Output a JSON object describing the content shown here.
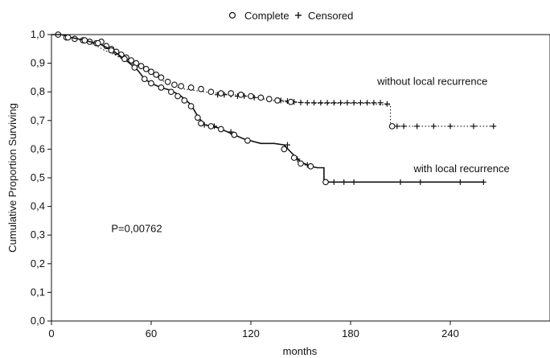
{
  "chart_data": {
    "type": "line",
    "title": "",
    "xlabel": "months",
    "ylabel": "Cumulative Proportion Surviving",
    "xlim": [
      0,
      300
    ],
    "ylim": [
      0,
      1.0
    ],
    "x_ticks": [
      0,
      60,
      120,
      180,
      240
    ],
    "x_tick_labels": [
      "0",
      "60",
      "120",
      "180",
      "240"
    ],
    "y_ticks": [
      0,
      0.1,
      0.2,
      0.3,
      0.4,
      0.5,
      0.6,
      0.7,
      0.8,
      0.9,
      1.0
    ],
    "y_tick_labels": [
      "0,0",
      "0,1",
      "0,2",
      "0,3",
      "0,4",
      "0,5",
      "0,6",
      "0,7",
      "0,8",
      "0,9",
      "1,0"
    ],
    "grid": false,
    "legend": {
      "position": "top-center",
      "entries": [
        {
          "label": "Complete",
          "marker": "circle"
        },
        {
          "label": "Censored",
          "marker": "plus"
        }
      ]
    },
    "annotations": [
      {
        "text": "P=0,00762",
        "x": 36,
        "y": 0.31
      },
      {
        "text": "without local recurrence",
        "x": 196,
        "y": 0.825
      },
      {
        "text": "with local recurrence",
        "x": 218,
        "y": 0.52
      }
    ],
    "series": [
      {
        "name": "without local recurrence",
        "line_style": "dotted",
        "points": [
          [
            0,
            1.0
          ],
          [
            6,
            1.0
          ],
          [
            10,
            0.99
          ],
          [
            15,
            0.985
          ],
          [
            20,
            0.975
          ],
          [
            26,
            0.965
          ],
          [
            32,
            0.945
          ],
          [
            38,
            0.93
          ],
          [
            44,
            0.91
          ],
          [
            50,
            0.895
          ],
          [
            56,
            0.875
          ],
          [
            62,
            0.86
          ],
          [
            68,
            0.835
          ],
          [
            74,
            0.82
          ],
          [
            80,
            0.81
          ],
          [
            86,
            0.805
          ],
          [
            92,
            0.8
          ],
          [
            100,
            0.795
          ],
          [
            110,
            0.79
          ],
          [
            120,
            0.785
          ],
          [
            128,
            0.775
          ],
          [
            134,
            0.77
          ],
          [
            140,
            0.765
          ],
          [
            150,
            0.762
          ],
          [
            160,
            0.76
          ],
          [
            170,
            0.76
          ],
          [
            180,
            0.76
          ],
          [
            190,
            0.76
          ],
          [
            200,
            0.755
          ],
          [
            204,
            0.755
          ],
          [
            204,
            0.68
          ],
          [
            230,
            0.68
          ],
          [
            260,
            0.68
          ],
          [
            266,
            0.68
          ]
        ],
        "complete_events": [
          [
            4,
            1.0
          ],
          [
            9,
            0.99
          ],
          [
            14,
            0.985
          ],
          [
            19,
            0.98
          ],
          [
            23,
            0.975
          ],
          [
            27,
            0.97
          ],
          [
            30,
            0.975
          ],
          [
            33,
            0.96
          ],
          [
            36,
            0.95
          ],
          [
            39,
            0.94
          ],
          [
            42,
            0.93
          ],
          [
            45,
            0.92
          ],
          [
            48,
            0.91
          ],
          [
            51,
            0.9
          ],
          [
            54,
            0.89
          ],
          [
            57,
            0.88
          ],
          [
            60,
            0.87
          ],
          [
            63,
            0.86
          ],
          [
            66,
            0.85
          ],
          [
            70,
            0.835
          ],
          [
            74,
            0.825
          ],
          [
            78,
            0.82
          ],
          [
            84,
            0.815
          ],
          [
            90,
            0.81
          ],
          [
            96,
            0.8
          ],
          [
            102,
            0.795
          ],
          [
            108,
            0.795
          ],
          [
            114,
            0.79
          ],
          [
            120,
            0.785
          ],
          [
            126,
            0.78
          ],
          [
            131,
            0.775
          ],
          [
            136,
            0.77
          ],
          [
            144,
            0.765
          ],
          [
            205,
            0.68
          ]
        ],
        "censored": [
          [
            100,
            0.79
          ],
          [
            104,
            0.79
          ],
          [
            108,
            0.79
          ],
          [
            112,
            0.785
          ],
          [
            116,
            0.785
          ],
          [
            122,
            0.78
          ],
          [
            138,
            0.77
          ],
          [
            142,
            0.768
          ],
          [
            146,
            0.765
          ],
          [
            150,
            0.763
          ],
          [
            154,
            0.762
          ],
          [
            158,
            0.762
          ],
          [
            162,
            0.762
          ],
          [
            166,
            0.762
          ],
          [
            170,
            0.762
          ],
          [
            174,
            0.762
          ],
          [
            178,
            0.762
          ],
          [
            182,
            0.762
          ],
          [
            186,
            0.762
          ],
          [
            190,
            0.762
          ],
          [
            194,
            0.762
          ],
          [
            198,
            0.762
          ],
          [
            202,
            0.758
          ],
          [
            208,
            0.68
          ],
          [
            212,
            0.68
          ],
          [
            220,
            0.68
          ],
          [
            230,
            0.68
          ],
          [
            240,
            0.68
          ],
          [
            254,
            0.68
          ],
          [
            266,
            0.68
          ]
        ]
      },
      {
        "name": "with local recurrence",
        "line_style": "solid",
        "points": [
          [
            0,
            1.0
          ],
          [
            6,
            1.0
          ],
          [
            12,
            0.99
          ],
          [
            20,
            0.98
          ],
          [
            30,
            0.965
          ],
          [
            38,
            0.94
          ],
          [
            46,
            0.905
          ],
          [
            52,
            0.875
          ],
          [
            56,
            0.845
          ],
          [
            60,
            0.83
          ],
          [
            66,
            0.815
          ],
          [
            72,
            0.805
          ],
          [
            78,
            0.785
          ],
          [
            84,
            0.755
          ],
          [
            88,
            0.715
          ],
          [
            92,
            0.685
          ],
          [
            100,
            0.675
          ],
          [
            108,
            0.655
          ],
          [
            116,
            0.635
          ],
          [
            126,
            0.62
          ],
          [
            134,
            0.62
          ],
          [
            140,
            0.615
          ],
          [
            144,
            0.59
          ],
          [
            150,
            0.555
          ],
          [
            156,
            0.54
          ],
          [
            160,
            0.535
          ],
          [
            164,
            0.535
          ],
          [
            164,
            0.485
          ],
          [
            200,
            0.485
          ],
          [
            230,
            0.485
          ],
          [
            260,
            0.485
          ]
        ],
        "complete_events": [
          [
            10,
            0.99
          ],
          [
            20,
            0.98
          ],
          [
            28,
            0.97
          ],
          [
            36,
            0.945
          ],
          [
            44,
            0.915
          ],
          [
            50,
            0.885
          ],
          [
            56,
            0.845
          ],
          [
            60,
            0.83
          ],
          [
            66,
            0.815
          ],
          [
            72,
            0.8
          ],
          [
            76,
            0.785
          ],
          [
            80,
            0.77
          ],
          [
            84,
            0.75
          ],
          [
            88,
            0.71
          ],
          [
            90,
            0.69
          ],
          [
            96,
            0.68
          ],
          [
            102,
            0.67
          ],
          [
            110,
            0.65
          ],
          [
            118,
            0.63
          ],
          [
            140,
            0.6
          ],
          [
            146,
            0.57
          ],
          [
            150,
            0.55
          ],
          [
            156,
            0.54
          ],
          [
            165,
            0.485
          ]
        ],
        "censored": [
          [
            92,
            0.685
          ],
          [
            98,
            0.68
          ],
          [
            108,
            0.66
          ],
          [
            142,
            0.615
          ],
          [
            148,
            0.565
          ],
          [
            154,
            0.545
          ],
          [
            170,
            0.485
          ],
          [
            176,
            0.485
          ],
          [
            182,
            0.485
          ],
          [
            210,
            0.485
          ],
          [
            222,
            0.485
          ],
          [
            246,
            0.485
          ],
          [
            260,
            0.485
          ]
        ]
      }
    ]
  }
}
